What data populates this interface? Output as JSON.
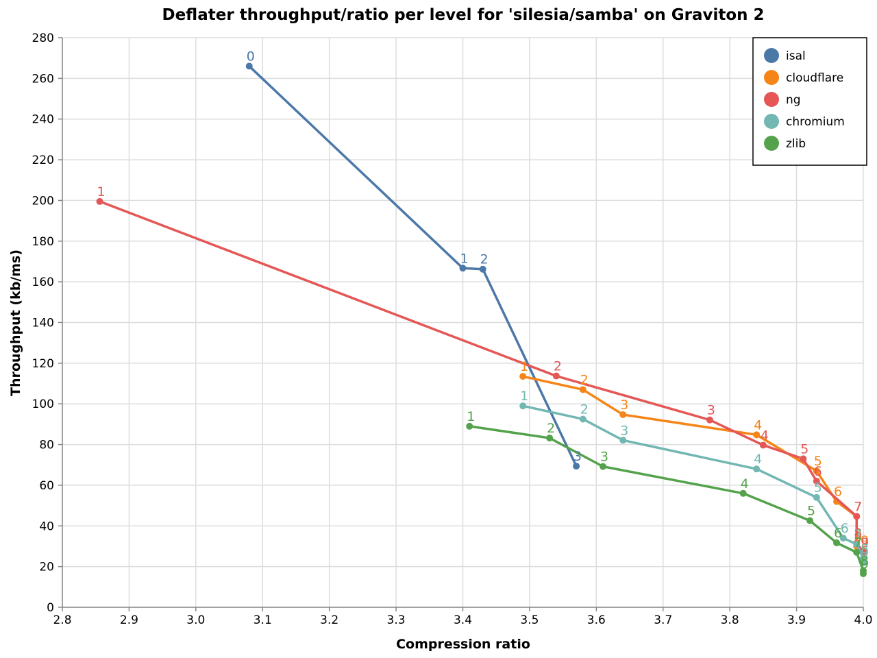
{
  "chart_data": {
    "type": "line",
    "title": "Deflater throughput/ratio per level for 'silesia/samba' on Graviton 2",
    "xlabel": "Compression ratio",
    "ylabel": "Throughput (kb/ms)",
    "xlim": [
      2.8,
      4.0
    ],
    "ylim": [
      0,
      280
    ],
    "x_ticks": [
      "2.8",
      "2.9",
      "3.0",
      "3.1",
      "3.2",
      "3.3",
      "3.4",
      "3.5",
      "3.6",
      "3.7",
      "3.8",
      "3.9",
      "4.0"
    ],
    "y_ticks": [
      "0",
      "20",
      "40",
      "60",
      "80",
      "100",
      "120",
      "140",
      "160",
      "180",
      "200",
      "220",
      "240",
      "260",
      "280"
    ],
    "grid": true,
    "legend_position": "top-right",
    "series": [
      {
        "name": "isal",
        "color": "#4c78a8",
        "points": [
          {
            "label": "0",
            "x": 3.08,
            "y": 266
          },
          {
            "label": "1",
            "x": 3.4,
            "y": 166.7
          },
          {
            "label": "2",
            "x": 3.43,
            "y": 166.2
          },
          {
            "label": "3",
            "x": 3.57,
            "y": 69.4
          }
        ]
      },
      {
        "name": "cloudflare",
        "color": "#f58518",
        "points": [
          {
            "label": "1",
            "x": 3.49,
            "y": 113.5
          },
          {
            "label": "2",
            "x": 3.58,
            "y": 107
          },
          {
            "label": "3",
            "x": 3.64,
            "y": 94.7
          },
          {
            "label": "4",
            "x": 3.84,
            "y": 84.8
          },
          {
            "label": "5",
            "x": 3.93,
            "y": 67
          },
          {
            "label": "6",
            "x": 3.96,
            "y": 52
          },
          {
            "label": "7",
            "x": 3.99,
            "y": 44.7
          },
          {
            "label": "8",
            "x": 3.99,
            "y": 30
          },
          {
            "label": "9",
            "x": 4.0,
            "y": 28
          }
        ]
      },
      {
        "name": "ng",
        "color": "#e45756",
        "points": [
          {
            "label": "1",
            "x": 2.856,
            "y": 199.5
          },
          {
            "label": "2",
            "x": 3.54,
            "y": 113.7
          },
          {
            "label": "3",
            "x": 3.77,
            "y": 92.1
          },
          {
            "label": "4",
            "x": 3.85,
            "y": 79.7
          },
          {
            "label": "5",
            "x": 3.91,
            "y": 73
          },
          {
            "label": "6",
            "x": 3.93,
            "y": 62
          },
          {
            "label": "7",
            "x": 3.99,
            "y": 44.7
          },
          {
            "label": "8",
            "x": 3.99,
            "y": 31.5
          },
          {
            "label": "9",
            "x": 4.0,
            "y": 27
          }
        ]
      },
      {
        "name": "chromium",
        "color": "#72b7b2",
        "points": [
          {
            "label": "1",
            "x": 3.49,
            "y": 99
          },
          {
            "label": "2",
            "x": 3.58,
            "y": 92.5
          },
          {
            "label": "3",
            "x": 3.64,
            "y": 82.1
          },
          {
            "label": "4",
            "x": 3.84,
            "y": 68
          },
          {
            "label": "5",
            "x": 3.93,
            "y": 54
          },
          {
            "label": "6",
            "x": 3.97,
            "y": 34
          },
          {
            "label": "7",
            "x": 3.99,
            "y": 31
          },
          {
            "label": "8",
            "x": 4.0,
            "y": 24
          },
          {
            "label": "9",
            "x": 4.0,
            "y": 22
          }
        ]
      },
      {
        "name": "zlib",
        "color": "#54a24b",
        "points": [
          {
            "label": "1",
            "x": 3.41,
            "y": 89
          },
          {
            "label": "2",
            "x": 3.53,
            "y": 83.2
          },
          {
            "label": "3",
            "x": 3.61,
            "y": 69.2
          },
          {
            "label": "4",
            "x": 3.82,
            "y": 56
          },
          {
            "label": "5",
            "x": 3.92,
            "y": 42.6
          },
          {
            "label": "6",
            "x": 3.96,
            "y": 31.7
          },
          {
            "label": "7",
            "x": 3.99,
            "y": 27
          },
          {
            "label": "8",
            "x": 4.0,
            "y": 18
          },
          {
            "label": "9",
            "x": 4.0,
            "y": 16.5
          }
        ]
      }
    ]
  }
}
